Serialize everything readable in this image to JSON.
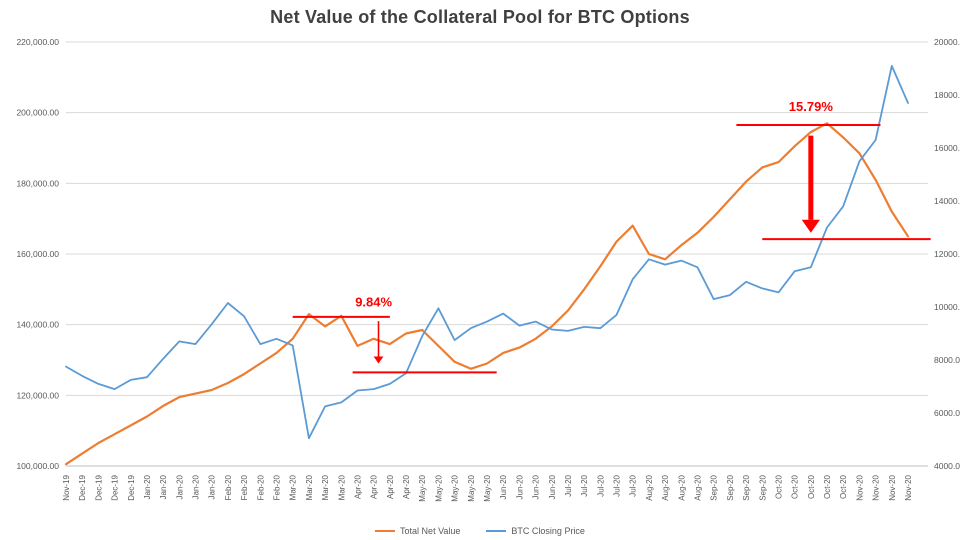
{
  "chart_data": {
    "type": "line",
    "title": "Net Value of the Collateral Pool for BTC Options",
    "categories": [
      "Nov-19",
      "Dec-19",
      "Dec-19",
      "Dec-19",
      "Dec-19",
      "Jan-20",
      "Jan-20",
      "Jan-20",
      "Jan-20",
      "Jan-20",
      "Feb-20",
      "Feb-20",
      "Feb-20",
      "Feb-20",
      "Mar-20",
      "Mar-20",
      "Mar-20",
      "Mar-20",
      "Apr-20",
      "Apr-20",
      "Apr-20",
      "Apr-20",
      "May-20",
      "May-20",
      "May-20",
      "May-20",
      "May-20",
      "Jun-20",
      "Jun-20",
      "Jun-20",
      "Jun-20",
      "Jul-20",
      "Jul-20",
      "Jul-20",
      "Jul-20",
      "Jul-20",
      "Aug-20",
      "Aug-20",
      "Aug-20",
      "Aug-20",
      "Sep-20",
      "Sep-20",
      "Sep-20",
      "Sep-20",
      "Oct-20",
      "Oct-20",
      "Oct-20",
      "Oct-20",
      "Oct-20",
      "Nov-20",
      "Nov-20",
      "Nov-20",
      "Nov-20"
    ],
    "series": [
      {
        "name": "Total Net Value",
        "axis": "left",
        "color": "#ED7D31",
        "stroke_width": 2.2,
        "values": [
          100500,
          103500,
          106500,
          109000,
          111500,
          114000,
          117000,
          119500,
          120500,
          121500,
          123500,
          126000,
          129000,
          132000,
          136000,
          143000,
          139500,
          142500,
          134000,
          136000,
          134500,
          137500,
          138500,
          134000,
          129500,
          127500,
          129000,
          132000,
          133500,
          136000,
          139500,
          144000,
          150000,
          156500,
          163500,
          168000,
          160000,
          158500,
          162500,
          166000,
          170500,
          175500,
          180500,
          184500,
          186000,
          190500,
          194500,
          197000,
          193000,
          188500,
          181000,
          172000,
          165000
        ]
      },
      {
        "name": "BTC Closing Price",
        "axis": "right",
        "color": "#5B9BD5",
        "stroke_width": 1.8,
        "values": [
          7750,
          7400,
          7100,
          6900,
          7250,
          7350,
          8050,
          8700,
          8600,
          9350,
          10150,
          9650,
          8600,
          8800,
          8550,
          5050,
          6250,
          6400,
          6850,
          6900,
          7100,
          7500,
          8900,
          9950,
          8750,
          9200,
          9450,
          9750,
          9300,
          9450,
          9150,
          9100,
          9250,
          9200,
          9700,
          11050,
          11800,
          11600,
          11750,
          11500,
          10300,
          10450,
          10950,
          10700,
          10550,
          11350,
          11500,
          13000,
          13800,
          15500,
          16300,
          19100,
          17700
        ]
      }
    ],
    "left_axis": {
      "min": 100000,
      "max": 220000,
      "step": 20000,
      "format": "thousands-2dp",
      "labels": [
        "100,000.00",
        "120,000.00",
        "140,000.00",
        "160,000.00",
        "180,000.00",
        "200,000.00",
        "220,000.00"
      ]
    },
    "right_axis": {
      "min": 4000,
      "max": 20000,
      "step": 2000,
      "format": "plain-2dp",
      "labels": [
        "4000.00",
        "6000.00",
        "8000.00",
        "10000.00",
        "12000.00",
        "14000.00",
        "16000.00",
        "18000.00",
        "20000.00"
      ]
    },
    "grid": true,
    "legend_position": "bottom",
    "annotations": [
      {
        "label": "9.84%",
        "label_pos": {
          "index": 19.0,
          "value": 146300
        },
        "top_line": {
          "value": 142200,
          "from_index": 14.0,
          "to_index": 20.0
        },
        "bottom_line": {
          "value": 126500,
          "from_index": 17.7,
          "to_index": 26.6
        },
        "arrow": {
          "index": 19.3,
          "from_value": 141000,
          "to_value": 129000,
          "thickness": 1.6,
          "head": 7
        }
      },
      {
        "label": "15.79%",
        "label_pos": {
          "index": 46.0,
          "value": 201600
        },
        "top_line": {
          "value": 196500,
          "from_index": 41.4,
          "to_index": 50.3
        },
        "bottom_line": {
          "value": 164200,
          "from_index": 43.0,
          "to_index": 53.4
        },
        "arrow": {
          "index": 46.0,
          "from_value": 193500,
          "to_value": 166000,
          "thickness": 5,
          "head": 13
        }
      }
    ]
  },
  "colors": {
    "grid": "#d9d9d9",
    "axis_line": "#bfbfbf",
    "axis_text": "#595959",
    "title_text": "#404040",
    "annotation": "#FF0000"
  }
}
